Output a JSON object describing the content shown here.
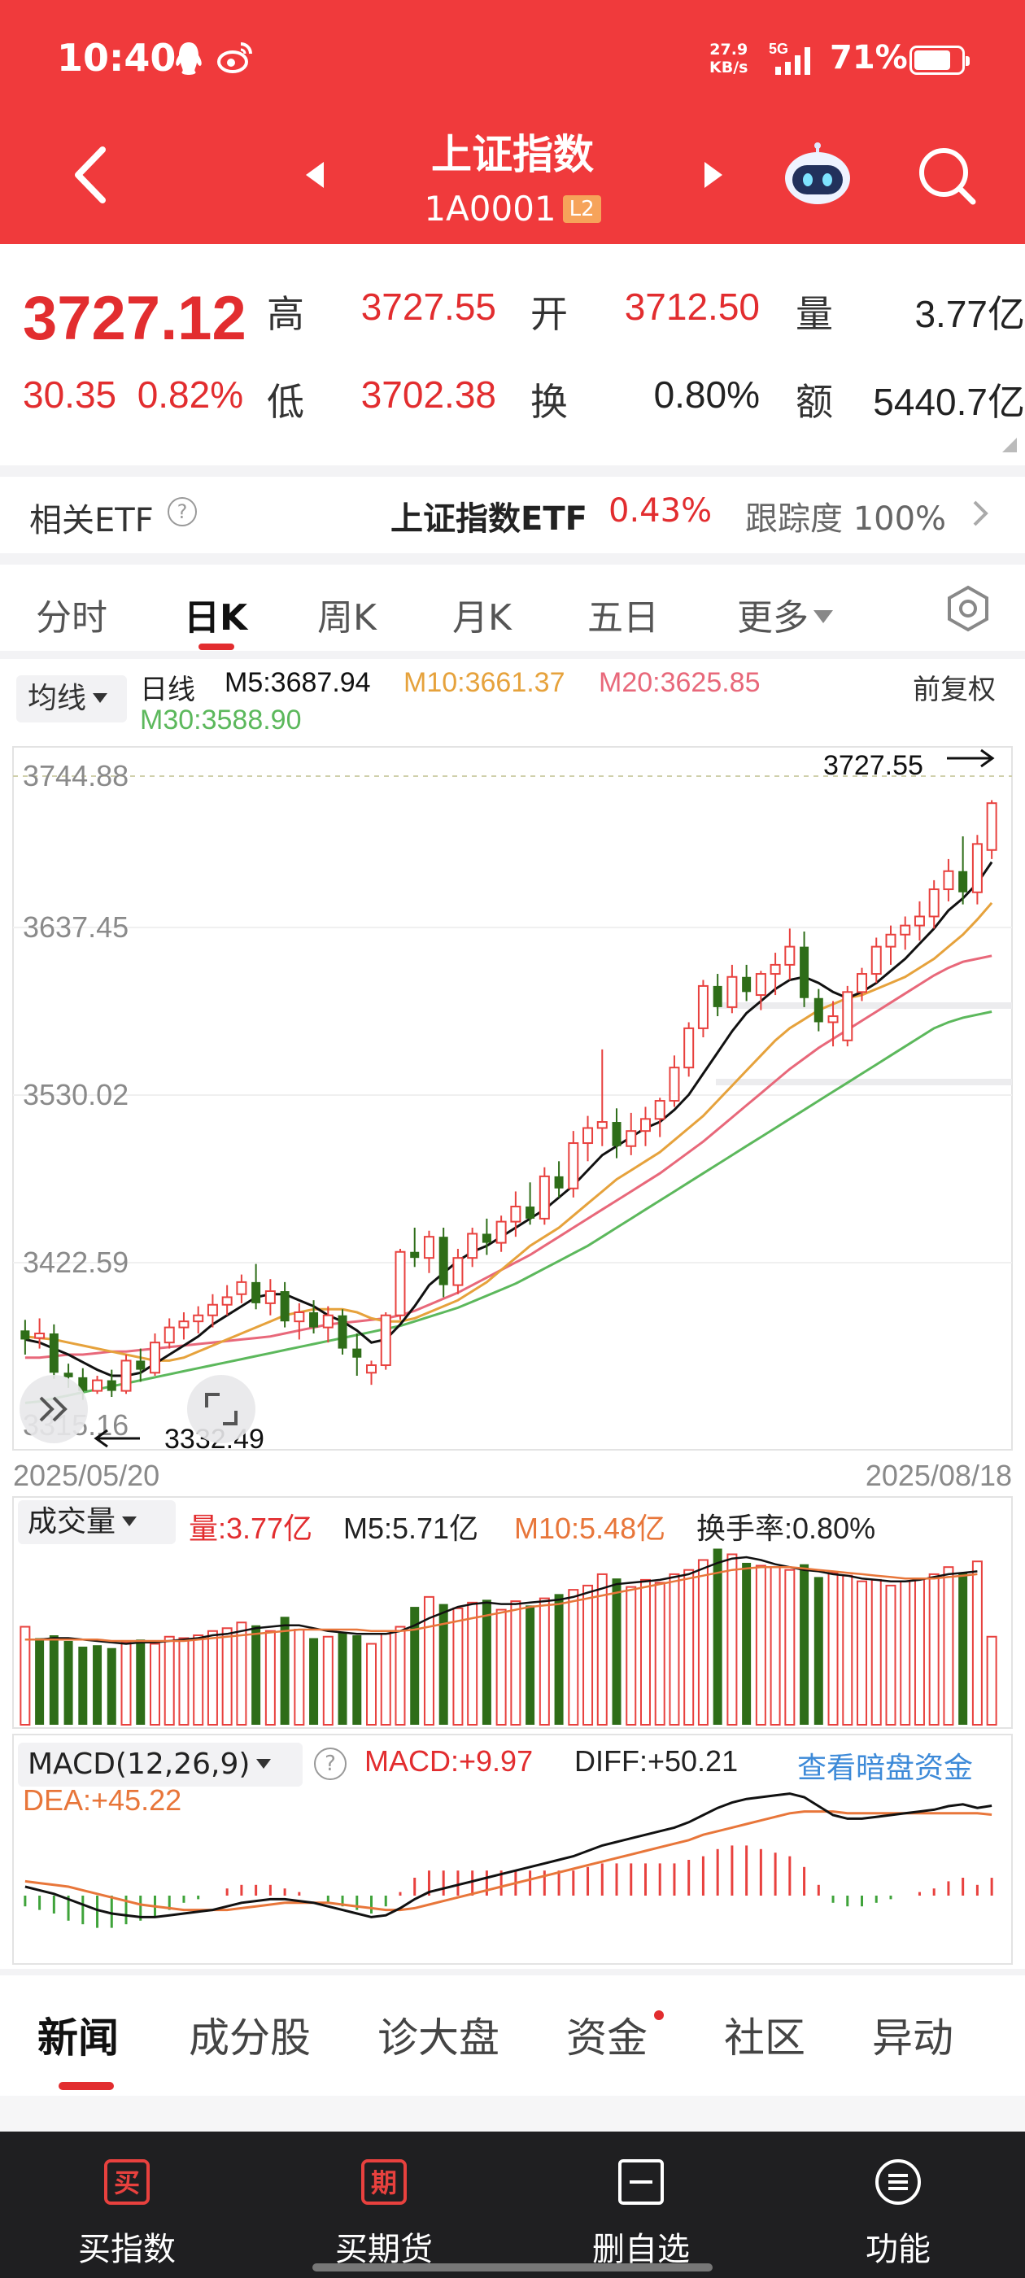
{
  "status_bar": {
    "time": "10:40",
    "speed_value": "27.9",
    "speed_unit": "KB/s",
    "network": "5G",
    "battery": "71%"
  },
  "nav": {
    "title": "上证指数",
    "code": "1A0001",
    "badge": "L2"
  },
  "quote": {
    "price": "3727.12",
    "change": "30.35",
    "change_pct": "0.82%",
    "high_label": "高",
    "high": "3727.55",
    "open_label": "开",
    "open": "3712.50",
    "vol_label": "量",
    "volume": "3.77亿",
    "low_label": "低",
    "low": "3702.38",
    "turn_label": "换",
    "turnover": "0.80%",
    "amt_label": "额",
    "amount": "5440.7亿"
  },
  "etf": {
    "label": "相关ETF",
    "name": "上证指数ETF",
    "pct": "0.43%",
    "tracking": "跟踪度 100%"
  },
  "tabs": [
    {
      "label": "分时"
    },
    {
      "label": "日K"
    },
    {
      "label": "周K"
    },
    {
      "label": "月K"
    },
    {
      "label": "五日"
    },
    {
      "label": "更多"
    }
  ],
  "ma_legend": {
    "selector": "均线",
    "period": "日线",
    "m5": "M5:3687.94",
    "m10": "M10:3661.37",
    "m20": "M20:3625.85",
    "m30": "M30:3588.90",
    "adjust": "前复权",
    "colors": {
      "m5": "#111111",
      "m10": "#e6a23c",
      "m20": "#e8687a",
      "m30": "#5cb85c",
      "up": "#e8413e",
      "down": "#2e6d18"
    }
  },
  "kchart": {
    "y_labels": [
      "3744.88",
      "3637.45",
      "3530.02",
      "3422.59",
      "3315.16"
    ],
    "high_annotation": "3727.55",
    "low_annotation": "3332.49",
    "start_date": "2025/05/20",
    "end_date": "2025/08/18"
  },
  "volume": {
    "selector": "成交量",
    "vol": "量:3.77亿",
    "m5": "M5:5.71亿",
    "m10": "M10:5.48亿",
    "turnover": "换手率:0.80%"
  },
  "macd": {
    "selector": "MACD(12,26,9)",
    "macd": "MACD:+9.97",
    "diff": "DIFF:+50.21",
    "dea": "DEA:+45.22",
    "link": "查看暗盘资金"
  },
  "news_tabs": [
    {
      "label": "新闻"
    },
    {
      "label": "成分股"
    },
    {
      "label": "诊大盘"
    },
    {
      "label": "资金"
    },
    {
      "label": "社区"
    },
    {
      "label": "异动"
    }
  ],
  "bottom_bar": [
    {
      "icon_char": "买",
      "label": "买指数"
    },
    {
      "icon_char": "期",
      "label": "买期货"
    },
    {
      "icon_char": "",
      "label": "删自选"
    },
    {
      "icon_char": "",
      "label": "功能"
    }
  ],
  "chart_data": {
    "type": "candlestick",
    "start_date": "2025/05/20",
    "end_date": "2025/08/18",
    "y_ticks": [
      3744.88,
      3637.45,
      3530.02,
      3422.59,
      3315.16
    ],
    "ohlc": [
      [
        3378,
        3385,
        3362,
        3372
      ],
      [
        3373,
        3386,
        3366,
        3376
      ],
      [
        3376,
        3382,
        3346,
        3350
      ],
      [
        3350,
        3356,
        3340,
        3347
      ],
      [
        3347,
        3353,
        3332,
        3338
      ],
      [
        3338,
        3348,
        3336,
        3345
      ],
      [
        3345,
        3352,
        3334,
        3338
      ],
      [
        3338,
        3362,
        3336,
        3358
      ],
      [
        3358,
        3366,
        3344,
        3352
      ],
      [
        3350,
        3376,
        3348,
        3370
      ],
      [
        3370,
        3386,
        3366,
        3380
      ],
      [
        3380,
        3390,
        3372,
        3384
      ],
      [
        3384,
        3394,
        3376,
        3388
      ],
      [
        3388,
        3402,
        3380,
        3395
      ],
      [
        3395,
        3408,
        3388,
        3400
      ],
      [
        3402,
        3415,
        3396,
        3410
      ],
      [
        3410,
        3422,
        3392,
        3396
      ],
      [
        3396,
        3412,
        3388,
        3404
      ],
      [
        3404,
        3410,
        3380,
        3384
      ],
      [
        3384,
        3396,
        3372,
        3390
      ],
      [
        3390,
        3398,
        3376,
        3380
      ],
      [
        3380,
        3394,
        3370,
        3388
      ],
      [
        3388,
        3392,
        3362,
        3366
      ],
      [
        3366,
        3376,
        3348,
        3360
      ],
      [
        3350,
        3358,
        3342,
        3355
      ],
      [
        3355,
        3390,
        3352,
        3388
      ],
      [
        3388,
        3432,
        3385,
        3430
      ],
      [
        3430,
        3446,
        3420,
        3426
      ],
      [
        3426,
        3444,
        3416,
        3440
      ],
      [
        3440,
        3446,
        3400,
        3408
      ],
      [
        3408,
        3432,
        3402,
        3426
      ],
      [
        3426,
        3446,
        3420,
        3442
      ],
      [
        3442,
        3452,
        3428,
        3436
      ],
      [
        3436,
        3454,
        3430,
        3450
      ],
      [
        3450,
        3470,
        3440,
        3460
      ],
      [
        3460,
        3476,
        3448,
        3452
      ],
      [
        3452,
        3486,
        3448,
        3480
      ],
      [
        3480,
        3490,
        3466,
        3472
      ],
      [
        3472,
        3510,
        3466,
        3502
      ],
      [
        3502,
        3520,
        3490,
        3512
      ],
      [
        3512,
        3564,
        3500,
        3516
      ],
      [
        3516,
        3525,
        3492,
        3500
      ],
      [
        3500,
        3522,
        3494,
        3510
      ],
      [
        3510,
        3526,
        3500,
        3518
      ],
      [
        3518,
        3532,
        3506,
        3530
      ],
      [
        3530,
        3560,
        3526,
        3552
      ],
      [
        3552,
        3582,
        3546,
        3578
      ],
      [
        3578,
        3610,
        3572,
        3606
      ],
      [
        3606,
        3614,
        3586,
        3592
      ],
      [
        3592,
        3620,
        3588,
        3612
      ],
      [
        3612,
        3620,
        3596,
        3602
      ],
      [
        3600,
        3616,
        3590,
        3614
      ],
      [
        3614,
        3628,
        3600,
        3620
      ],
      [
        3620,
        3644,
        3610,
        3632
      ],
      [
        3632,
        3642,
        3592,
        3598
      ],
      [
        3598,
        3604,
        3576,
        3582
      ],
      [
        3582,
        3596,
        3566,
        3586
      ],
      [
        3570,
        3606,
        3566,
        3602
      ],
      [
        3602,
        3618,
        3596,
        3614
      ],
      [
        3614,
        3638,
        3608,
        3632
      ],
      [
        3632,
        3646,
        3620,
        3640
      ],
      [
        3640,
        3652,
        3630,
        3646
      ],
      [
        3646,
        3662,
        3636,
        3652
      ],
      [
        3652,
        3676,
        3644,
        3670
      ],
      [
        3670,
        3690,
        3662,
        3682
      ],
      [
        3682,
        3705,
        3660,
        3668
      ],
      [
        3668,
        3706,
        3660,
        3700
      ],
      [
        3696,
        3729,
        3690,
        3727
      ]
    ],
    "ma5": [
      3372,
      3370,
      3366,
      3362,
      3357,
      3352,
      3348,
      3348,
      3350,
      3356,
      3362,
      3368,
      3374,
      3382,
      3388,
      3394,
      3400,
      3402,
      3402,
      3398,
      3394,
      3388,
      3384,
      3378,
      3370,
      3372,
      3382,
      3394,
      3408,
      3416,
      3424,
      3430,
      3434,
      3440,
      3446,
      3452,
      3458,
      3466,
      3474,
      3484,
      3494,
      3500,
      3506,
      3512,
      3516,
      3524,
      3534,
      3548,
      3562,
      3576,
      3588,
      3596,
      3604,
      3610,
      3612,
      3608,
      3602,
      3598,
      3602,
      3608,
      3616,
      3624,
      3634,
      3644,
      3656,
      3664,
      3674,
      3688
    ],
    "ma10": [
      3374,
      3373,
      3372,
      3370,
      3368,
      3366,
      3364,
      3362,
      3360,
      3358,
      3358,
      3360,
      3364,
      3368,
      3372,
      3376,
      3380,
      3384,
      3388,
      3390,
      3392,
      3392,
      3392,
      3390,
      3386,
      3384,
      3384,
      3386,
      3390,
      3394,
      3398,
      3404,
      3410,
      3418,
      3426,
      3434,
      3440,
      3446,
      3454,
      3462,
      3470,
      3478,
      3484,
      3490,
      3496,
      3504,
      3512,
      3520,
      3530,
      3540,
      3550,
      3560,
      3570,
      3578,
      3584,
      3590,
      3594,
      3598,
      3600,
      3604,
      3608,
      3612,
      3618,
      3624,
      3632,
      3640,
      3650,
      3661
    ],
    "ma20": [
      3360,
      3360,
      3361,
      3362,
      3362,
      3363,
      3364,
      3364,
      3365,
      3366,
      3367,
      3368,
      3369,
      3370,
      3371,
      3372,
      3373,
      3374,
      3376,
      3378,
      3380,
      3382,
      3383,
      3384,
      3385,
      3386,
      3388,
      3391,
      3395,
      3399,
      3403,
      3408,
      3413,
      3418,
      3423,
      3428,
      3434,
      3440,
      3446,
      3452,
      3458,
      3464,
      3470,
      3476,
      3482,
      3489,
      3496,
      3503,
      3511,
      3519,
      3527,
      3535,
      3543,
      3551,
      3558,
      3565,
      3571,
      3577,
      3583,
      3589,
      3595,
      3601,
      3607,
      3613,
      3618,
      3622,
      3624,
      3626
    ],
    "ma30": [
      3330,
      3331,
      3333,
      3335,
      3337,
      3339,
      3341,
      3343,
      3345,
      3347,
      3349,
      3351,
      3353,
      3355,
      3357,
      3359,
      3361,
      3363,
      3365,
      3367,
      3369,
      3371,
      3373,
      3375,
      3377,
      3379,
      3381,
      3384,
      3387,
      3390,
      3393,
      3397,
      3401,
      3405,
      3409,
      3414,
      3419,
      3424,
      3429,
      3434,
      3440,
      3446,
      3452,
      3458,
      3464,
      3470,
      3476,
      3482,
      3488,
      3494,
      3500,
      3506,
      3512,
      3518,
      3524,
      3530,
      3536,
      3542,
      3548,
      3554,
      3560,
      3566,
      3572,
      3578,
      3582,
      3585,
      3587,
      3589
    ],
    "volume": [
      6.9,
      6.1,
      6.3,
      5.9,
      5.5,
      5.6,
      5.4,
      5.8,
      6.0,
      5.7,
      6.2,
      6.1,
      6.3,
      6.6,
      6.8,
      7.2,
      7.0,
      6.6,
      7.6,
      6.7,
      6.1,
      6.2,
      6.5,
      6.3,
      5.7,
      6.4,
      6.9,
      8.3,
      9.0,
      8.5,
      8.2,
      8.6,
      8.8,
      8.1,
      8.7,
      8.4,
      8.9,
      9.2,
      9.5,
      9.8,
      10.6,
      10.3,
      9.7,
      10.2,
      10.0,
      10.6,
      10.9,
      11.6,
      12.4,
      12.0,
      11.4,
      11.2,
      11.1,
      10.9,
      11.3,
      10.4,
      10.7,
      10.5,
      10.1,
      10.2,
      9.8,
      10.1,
      10.3,
      10.6,
      11.1,
      10.7,
      11.5,
      6.2
    ],
    "vol_up": [
      true,
      false,
      false,
      false,
      false,
      false,
      false,
      true,
      false,
      true,
      true,
      true,
      true,
      true,
      true,
      true,
      false,
      true,
      false,
      true,
      false,
      true,
      false,
      false,
      true,
      true,
      true,
      false,
      true,
      false,
      true,
      true,
      false,
      true,
      true,
      false,
      true,
      false,
      true,
      true,
      true,
      false,
      true,
      true,
      true,
      true,
      true,
      true,
      false,
      true,
      false,
      true,
      true,
      true,
      false,
      false,
      true,
      true,
      true,
      true,
      true,
      true,
      true,
      true,
      true,
      false,
      true,
      true
    ],
    "vol_ma5": [
      6.0,
      6.0,
      6.1,
      6.1,
      6.0,
      5.9,
      5.8,
      5.7,
      5.8,
      5.8,
      5.9,
      6.0,
      6.1,
      6.3,
      6.4,
      6.6,
      6.8,
      6.9,
      7.0,
      7.0,
      6.8,
      6.6,
      6.5,
      6.4,
      6.4,
      6.4,
      6.6,
      7.0,
      7.5,
      7.9,
      8.3,
      8.5,
      8.6,
      8.5,
      8.5,
      8.6,
      8.7,
      8.8,
      9.0,
      9.3,
      9.6,
      9.9,
      10.0,
      10.1,
      10.2,
      10.4,
      10.6,
      11.0,
      11.4,
      11.7,
      11.8,
      11.6,
      11.3,
      11.1,
      10.9,
      10.8,
      10.6,
      10.5,
      10.3,
      10.2,
      10.1,
      10.1,
      10.2,
      10.4,
      10.6,
      10.7,
      10.8,
      5.71
    ],
    "vol_ma10": [
      6.0,
      6.0,
      6.0,
      6.0,
      6.0,
      6.0,
      5.9,
      5.9,
      5.9,
      5.9,
      5.9,
      5.9,
      6.0,
      6.1,
      6.2,
      6.3,
      6.4,
      6.5,
      6.6,
      6.7,
      6.7,
      6.7,
      6.7,
      6.7,
      6.6,
      6.6,
      6.6,
      6.7,
      6.9,
      7.1,
      7.3,
      7.5,
      7.7,
      7.9,
      8.1,
      8.3,
      8.4,
      8.5,
      8.7,
      8.9,
      9.1,
      9.3,
      9.5,
      9.7,
      9.9,
      10.1,
      10.3,
      10.5,
      10.7,
      10.9,
      11.0,
      11.1,
      11.1,
      11.1,
      11.0,
      10.9,
      10.8,
      10.7,
      10.6,
      10.5,
      10.4,
      10.3,
      10.3,
      10.3,
      10.4,
      10.5,
      10.6,
      5.48
    ],
    "diff": [
      5,
      3,
      1,
      -2,
      -5,
      -8,
      -10,
      -11,
      -12,
      -12,
      -11,
      -10,
      -9,
      -8,
      -6,
      -4,
      -3,
      -2,
      -2,
      -3,
      -4,
      -6,
      -8,
      -10,
      -12,
      -11,
      -7,
      -2,
      2,
      4,
      6,
      8,
      10,
      12,
      14,
      16,
      18,
      20,
      22,
      25,
      28,
      30,
      32,
      34,
      36,
      38,
      41,
      45,
      49,
      52,
      54,
      55,
      56,
      57,
      55,
      50,
      45,
      43,
      43,
      44,
      45,
      46,
      47,
      48,
      50,
      51,
      49,
      50.21
    ],
    "dea": [
      8,
      7,
      6,
      5,
      3,
      1,
      -1,
      -3,
      -5,
      -6,
      -7,
      -8,
      -8,
      -8,
      -8,
      -7,
      -6,
      -5,
      -4,
      -4,
      -4,
      -4,
      -5,
      -6,
      -7,
      -8,
      -8,
      -7,
      -5,
      -3,
      -1,
      1,
      3,
      5,
      7,
      9,
      11,
      13,
      15,
      17,
      19,
      21,
      23,
      25,
      27,
      29,
      31,
      34,
      36,
      38,
      40,
      42,
      44,
      46,
      47,
      47,
      47,
      46,
      46,
      46,
      46,
      46,
      46,
      46,
      46,
      46,
      46,
      45.22
    ],
    "macd": [
      -6,
      -8,
      -10,
      -14,
      -16,
      -18,
      -18,
      -16,
      -14,
      -12,
      -8,
      -4,
      -2,
      0,
      4,
      6,
      6,
      6,
      4,
      2,
      0,
      -4,
      -6,
      -8,
      -10,
      -6,
      2,
      10,
      14,
      14,
      14,
      14,
      14,
      14,
      14,
      14,
      14,
      14,
      14,
      16,
      18,
      18,
      18,
      18,
      18,
      18,
      20,
      22,
      26,
      28,
      28,
      26,
      24,
      22,
      16,
      6,
      -4,
      -6,
      -6,
      -4,
      -2,
      0,
      2,
      4,
      8,
      10,
      6,
      9.97
    ]
  }
}
